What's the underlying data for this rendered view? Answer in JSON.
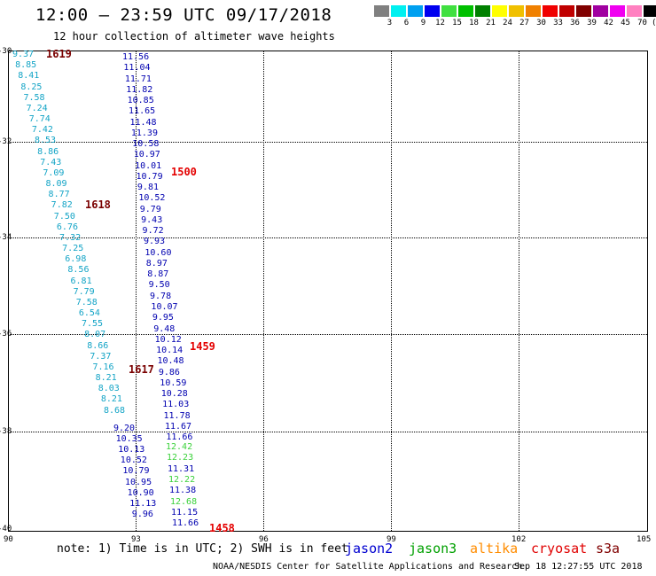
{
  "header": {
    "title": "12:00 – 23:59 UTC 09/17/2018",
    "subtitle": "12 hour collection of altimeter wave heights"
  },
  "legend": {
    "labels": [
      "3",
      "6",
      "9",
      "12",
      "15",
      "18",
      "21",
      "24",
      "27",
      "30",
      "33",
      "36",
      "39",
      "42",
      "45",
      "70",
      "(ft)"
    ],
    "colors": [
      "#808080",
      "#00f0f0",
      "#00a0f0",
      "#0000f0",
      "#40e040",
      "#00c000",
      "#008000",
      "#ffff00",
      "#f0c000",
      "#f08000",
      "#f00000",
      "#c00000",
      "#800000",
      "#a000a0",
      "#f000f0",
      "#ff80c0",
      "#000000"
    ]
  },
  "axes": {
    "lat_labels": [
      "-30",
      "-32",
      "-34",
      "-36",
      "-38",
      "-40"
    ],
    "lon_labels": [
      "90",
      "93",
      "96",
      "99",
      "102",
      "105"
    ]
  },
  "track_cyan": {
    "values": [
      "9.37",
      "8.85",
      "8.41",
      "8.25",
      "7.58",
      "7.24",
      "7.74",
      "7.42",
      "8.53",
      "8.86",
      "7.43",
      "7.09",
      "8.09",
      "8.77",
      "7.82",
      "7.50",
      "6.76",
      "7.32",
      "7.25",
      "6.98",
      "8.56",
      "6.81",
      "7.79",
      "7.58",
      "6.54",
      "7.55",
      "8.07",
      "8.66",
      "7.37",
      "7.16",
      "8.21",
      "8.03",
      "8.21",
      "8.68"
    ]
  },
  "track_blue_upper": {
    "values": [
      "11.56",
      "11.04",
      "11.71",
      "11.82",
      "10.85",
      "11.65",
      "11.48",
      "11.39",
      "10.58",
      "10.97",
      "10.01",
      "10.79",
      "9.81",
      "10.52",
      "9.79",
      "9.43",
      "9.72",
      "9.93",
      "10.60",
      "8.97",
      "8.87",
      "9.50",
      "9.78",
      "10.07",
      "9.95",
      "9.48",
      "10.12",
      "10.14",
      "10.48",
      "9.86",
      "10.59",
      "10.28",
      "11.03",
      "11.78",
      "11.67",
      "11.66"
    ]
  },
  "track_green_mix": {
    "values": [
      "12.42",
      "12.23",
      "11.31",
      "12.22",
      "11.38",
      "12.68",
      "11.15",
      "11.66"
    ],
    "colors": [
      "green",
      "green",
      "blue",
      "green",
      "blue",
      "green",
      "blue",
      "blue"
    ]
  },
  "track_blue_lower": {
    "values": [
      "9.20",
      "10.35",
      "10.13",
      "10.52",
      "10.79",
      "10.95",
      "10.90",
      "11.13",
      "9.96"
    ]
  },
  "time_labels": {
    "t1619": "1619",
    "t1618": "1618",
    "t1617": "1617",
    "t1500": "1500",
    "t1459": "1459",
    "t1458": "1458"
  },
  "footer": {
    "note": "note: 1) Time is in UTC; 2) SWH is in feet",
    "satellites": [
      {
        "name": "jason2",
        "color": "#0000d0"
      },
      {
        "name": "jason3",
        "color": "#00a000"
      },
      {
        "name": "altika",
        "color": "#ff8c00"
      },
      {
        "name": "cryosat",
        "color": "#e00000"
      },
      {
        "name": "s3a",
        "color": "#800000"
      }
    ],
    "credit": "NOAA/NESDIS Center for Satellite Applications and Research",
    "timestamp": "Sep 18 12:27:55 UTC 2018"
  }
}
